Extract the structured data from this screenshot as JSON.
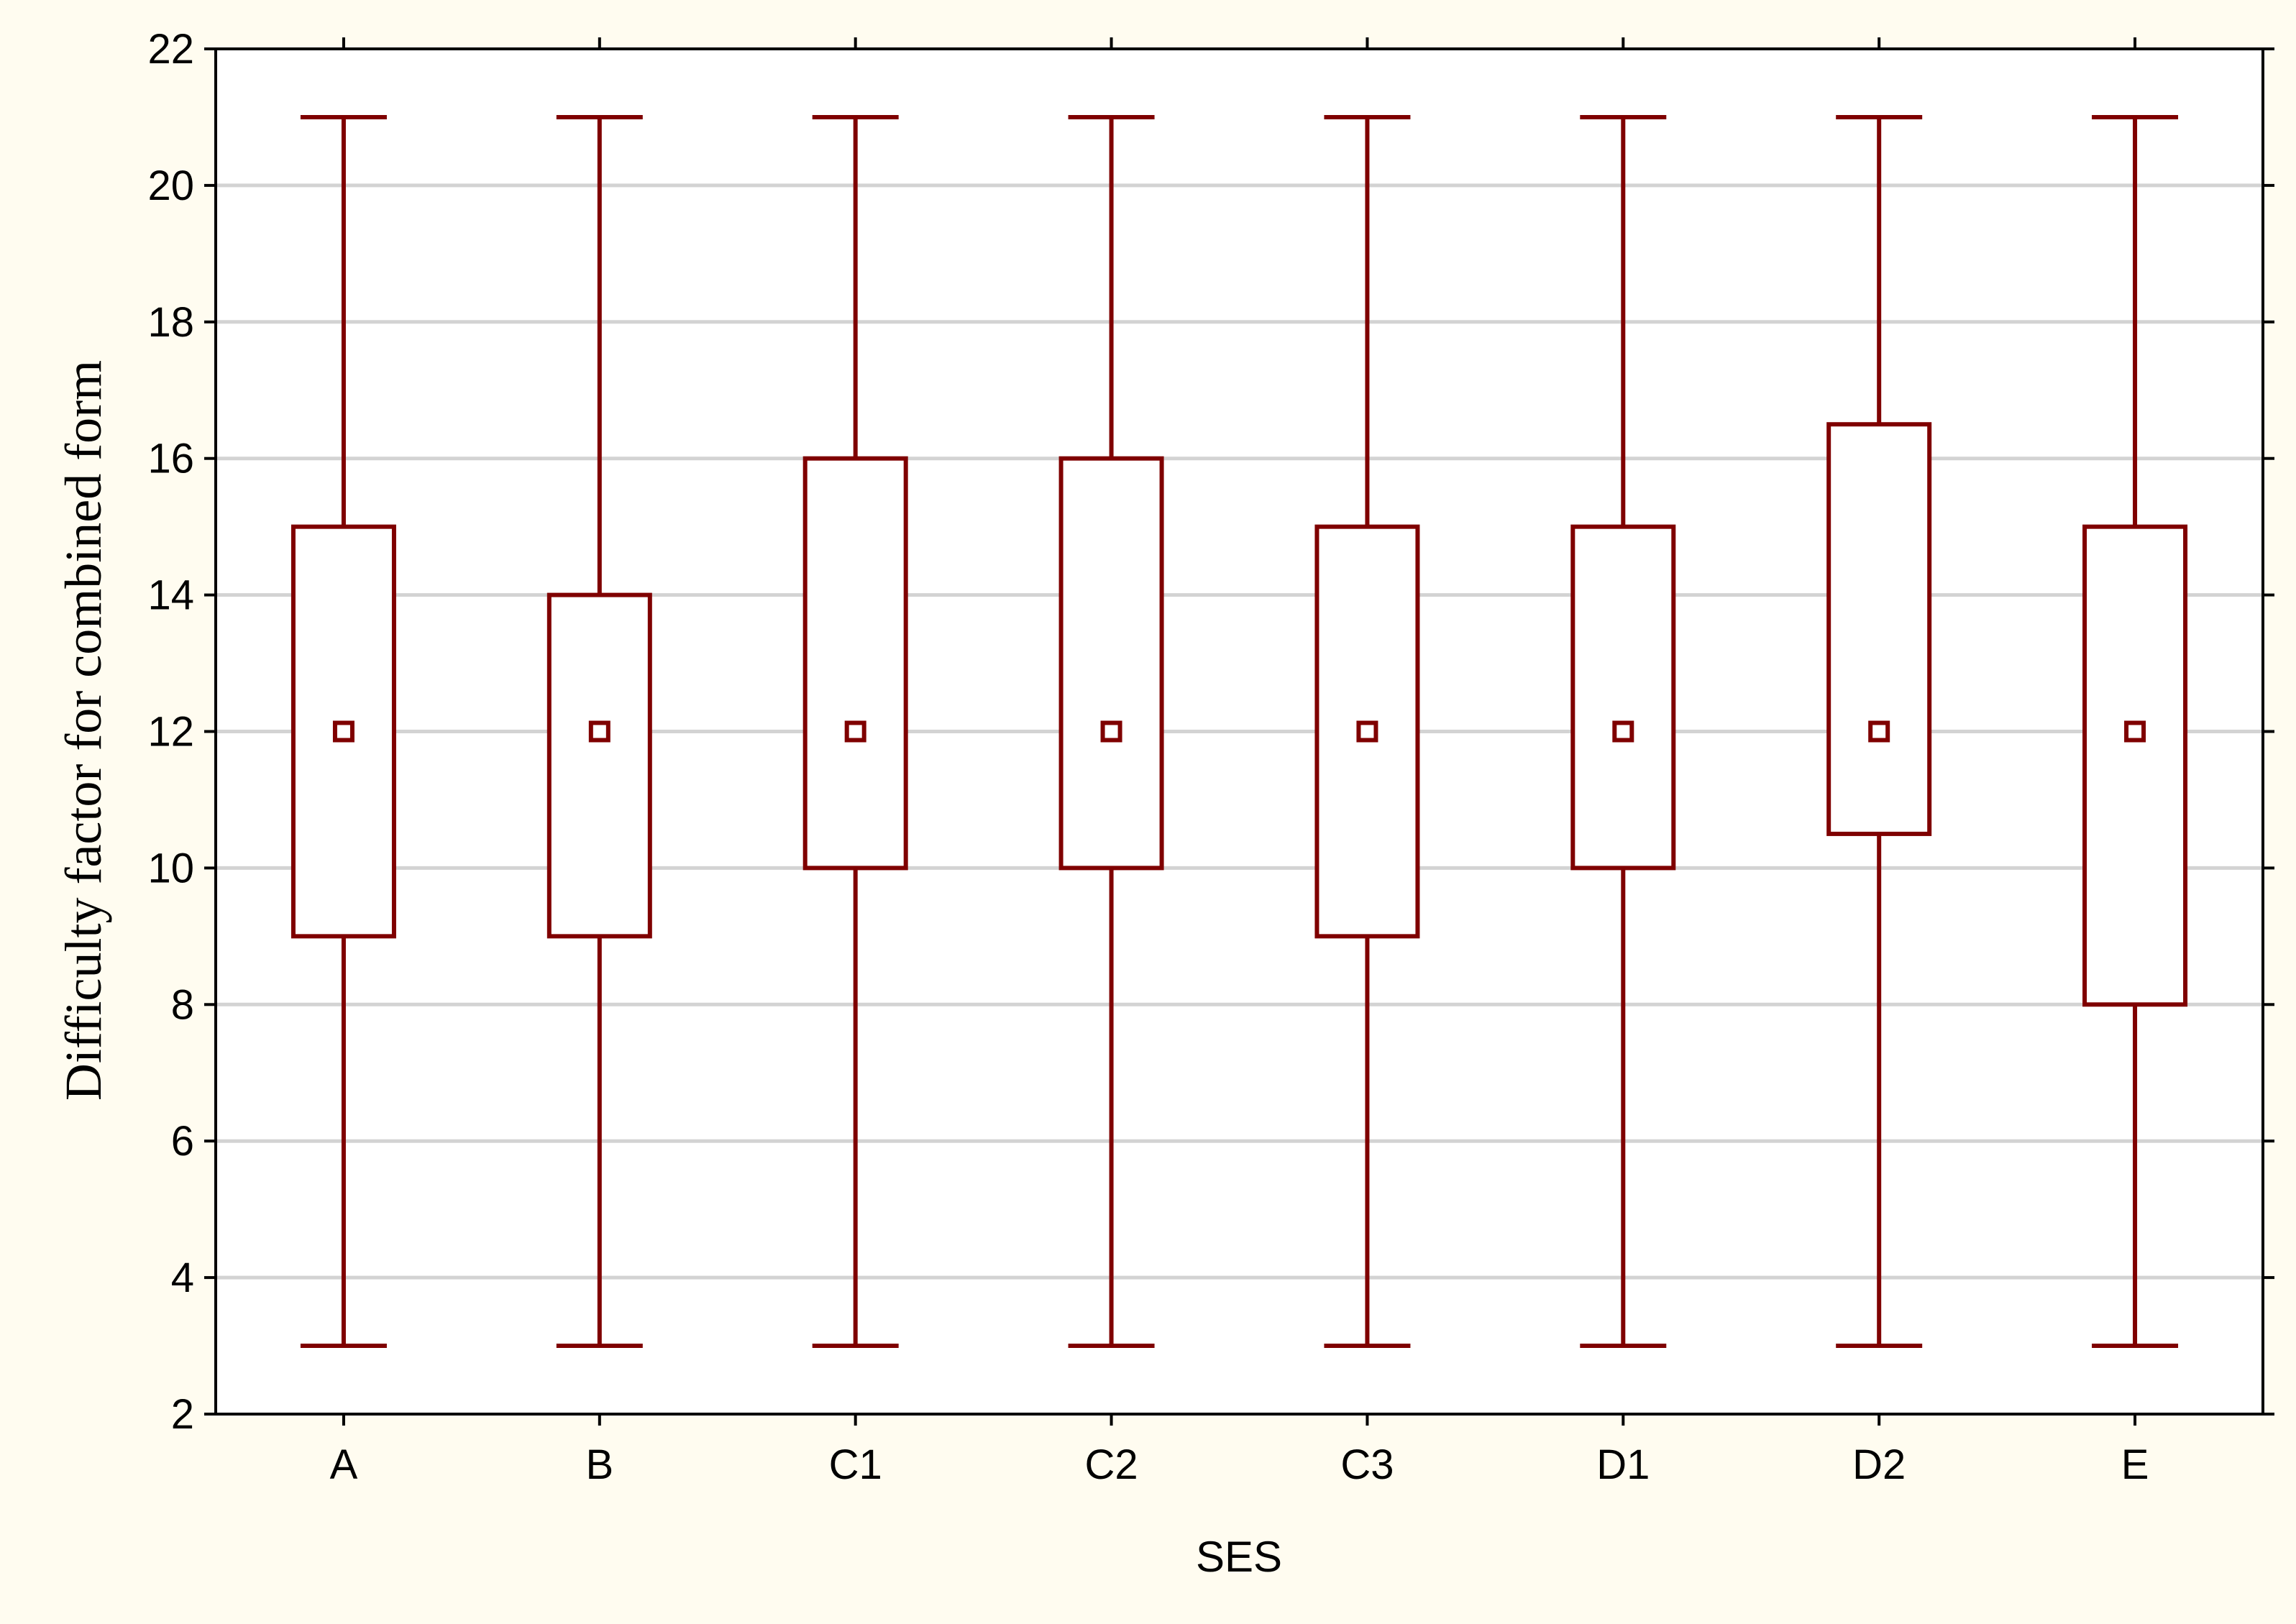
{
  "colors": {
    "page_bg": "#fffcf0",
    "plot_bg": "#ffffff",
    "box": "#7f0000",
    "grid": "#d3d3d3",
    "axis": "#000000"
  },
  "chart_data": {
    "type": "box",
    "title": "",
    "xlabel": "SES",
    "ylabel": "Difficulty factor for combined form",
    "ylim": [
      2,
      22
    ],
    "yticks": [
      2,
      4,
      6,
      8,
      10,
      12,
      14,
      16,
      18,
      20,
      22
    ],
    "grid": "horizontal",
    "categories": [
      "A",
      "B",
      "C1",
      "C2",
      "C3",
      "D1",
      "D2",
      "E"
    ],
    "series": [
      {
        "median": [
          12,
          12,
          12,
          12,
          12,
          12,
          12,
          12
        ],
        "q1": [
          9,
          9,
          10,
          10,
          9,
          10,
          10.5,
          8
        ],
        "q3": [
          15,
          14,
          16,
          16,
          15,
          15,
          16.5,
          15
        ],
        "min": [
          3,
          3,
          3,
          3,
          3,
          3,
          3,
          3
        ],
        "max": [
          21,
          21,
          21,
          21,
          21,
          21,
          21,
          21
        ]
      }
    ]
  }
}
